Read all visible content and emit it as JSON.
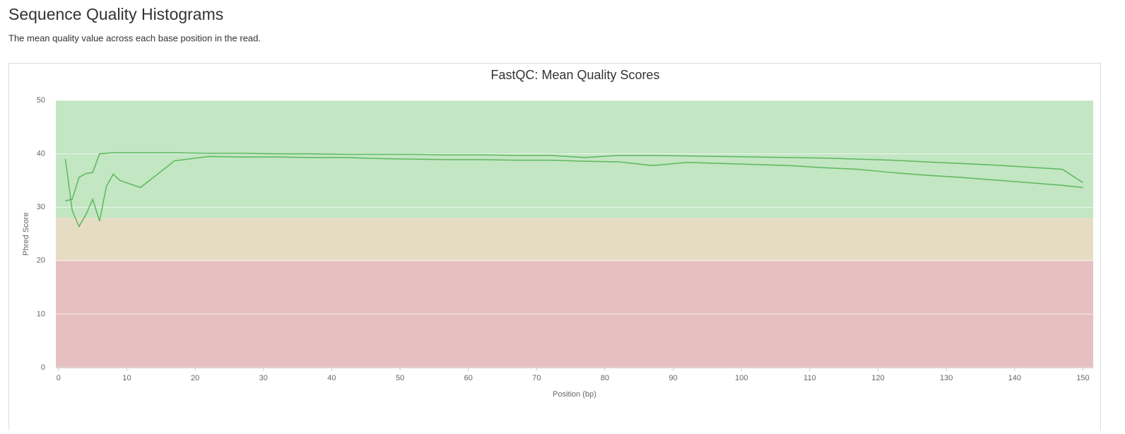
{
  "page": {
    "title": "Sequence Quality Histograms",
    "description": "The mean quality value across each base position in the read."
  },
  "chart_data": {
    "type": "line",
    "title": "FastQC: Mean Quality Scores",
    "x_label": "Position (bp)",
    "y_label": "Phred Score",
    "x": [
      1,
      2,
      3,
      4,
      5,
      6,
      7,
      8,
      9,
      12,
      17,
      22,
      27,
      32,
      37,
      42,
      47,
      52,
      57,
      62,
      67,
      72,
      77,
      82,
      87,
      92,
      97,
      102,
      107,
      112,
      117,
      122,
      127,
      132,
      137,
      142,
      147,
      150
    ],
    "series": [
      {
        "color": "#5cb85c",
        "values": [
          31.2,
          31.5,
          35.6,
          36.3,
          36.5,
          40.0,
          40.1,
          40.2,
          40.2,
          40.2,
          40.2,
          40.1,
          40.1,
          40.0,
          40.0,
          39.9,
          39.9,
          39.9,
          39.8,
          39.8,
          39.7,
          39.7,
          39.3,
          39.7,
          39.7,
          39.6,
          39.5,
          39.4,
          39.3,
          39.2,
          39.0,
          38.8,
          38.5,
          38.2,
          37.9,
          37.5,
          37.1,
          34.6
        ]
      },
      {
        "color": "#5cb85c",
        "values": [
          39.0,
          29.4,
          26.4,
          28.6,
          31.5,
          27.4,
          33.9,
          36.2,
          35.0,
          33.7,
          38.7,
          39.5,
          39.4,
          39.4,
          39.3,
          39.3,
          39.1,
          39.0,
          38.9,
          38.9,
          38.8,
          38.8,
          38.6,
          38.5,
          37.8,
          38.4,
          38.2,
          38.0,
          37.8,
          37.4,
          37.1,
          36.5,
          36.0,
          35.6,
          35.1,
          34.6,
          34.1,
          33.7
        ]
      }
    ],
    "bands": [
      {
        "from": 28,
        "to": 50,
        "color": "#c3e6c3"
      },
      {
        "from": 20,
        "to": 28,
        "color": "#e6dcc3"
      },
      {
        "from": 0,
        "to": 20,
        "color": "#e6c0c0"
      }
    ],
    "xlim": [
      -0.4,
      151.5
    ],
    "ylim": [
      0,
      50
    ],
    "xticks": [
      0,
      10,
      20,
      30,
      40,
      50,
      60,
      70,
      80,
      90,
      100,
      110,
      120,
      130,
      140,
      150
    ],
    "yticks": [
      0,
      10,
      20,
      30,
      40,
      50
    ],
    "grid": true
  }
}
